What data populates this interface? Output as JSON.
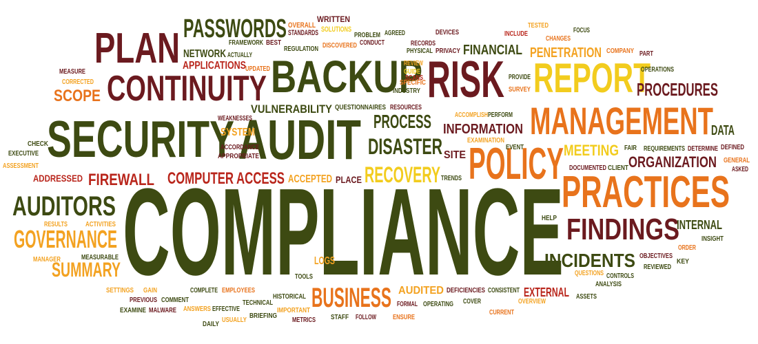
{
  "colors": {
    "olive": "#3d4a12",
    "maroon": "#6b1a1f",
    "red": "#b9261c",
    "orange": "#e8731c",
    "amber": "#f3a221",
    "yellow": "#f2cc1e",
    "green": "#6a7a1c"
  },
  "words": [
    {
      "text": "COMPLIANCE",
      "color": "olive"
    },
    {
      "text": "SECURITY",
      "color": "olive"
    },
    {
      "text": "AUDIT",
      "color": "olive"
    },
    {
      "text": "BACKUP",
      "color": "olive"
    },
    {
      "text": "RISK",
      "color": "maroon"
    },
    {
      "text": "PLAN",
      "color": "maroon"
    },
    {
      "text": "CONTINUITY",
      "color": "maroon"
    },
    {
      "text": "PASSWORDS",
      "color": "olive"
    },
    {
      "text": "REPORT",
      "color": "yellow"
    },
    {
      "text": "MANAGEMENT",
      "color": "orange"
    },
    {
      "text": "PRACTICES",
      "color": "orange"
    },
    {
      "text": "POLICY",
      "color": "orange"
    },
    {
      "text": "PROCEDURES",
      "color": "maroon"
    },
    {
      "text": "FINDINGS",
      "color": "maroon"
    },
    {
      "text": "INCIDENTS",
      "color": "olive"
    },
    {
      "text": "ORGANIZATION",
      "color": "maroon"
    },
    {
      "text": "AUDITORS",
      "color": "olive"
    },
    {
      "text": "GOVERNANCE",
      "color": "amber"
    },
    {
      "text": "SUMMARY",
      "color": "amber"
    },
    {
      "text": "BUSINESS",
      "color": "orange"
    },
    {
      "text": "DISASTER",
      "color": "olive"
    },
    {
      "text": "RECOVERY",
      "color": "yellow"
    },
    {
      "text": "PROCESS",
      "color": "olive"
    },
    {
      "text": "INFORMATION",
      "color": "maroon"
    },
    {
      "text": "FIREWALL",
      "color": "red"
    },
    {
      "text": "COMPUTER ACCESS",
      "color": "red"
    },
    {
      "text": "SCOPE",
      "color": "orange"
    },
    {
      "text": "VULNERABILITY",
      "color": "olive"
    },
    {
      "text": "PENETRATION",
      "color": "amber"
    },
    {
      "text": "FINANCIAL",
      "color": "olive"
    },
    {
      "text": "MEETING",
      "color": "yellow"
    },
    {
      "text": "DATA",
      "color": "olive"
    },
    {
      "text": "INTERNAL",
      "color": "olive"
    },
    {
      "text": "EXTERNAL",
      "color": "red"
    },
    {
      "text": "AUDITED",
      "color": "amber"
    },
    {
      "text": "APPLICATIONS",
      "color": "red"
    },
    {
      "text": "NETWORK",
      "color": "olive"
    },
    {
      "text": "SYSTEM",
      "color": "amber"
    },
    {
      "text": "ACCEPTED",
      "color": "amber"
    },
    {
      "text": "PLACE",
      "color": "maroon"
    },
    {
      "text": "ADDRESSED",
      "color": "red"
    },
    {
      "text": "SITE",
      "color": "maroon"
    },
    {
      "text": "LOGS",
      "color": "amber"
    },
    {
      "text": "WRITTEN",
      "color": "maroon"
    },
    {
      "text": "OVERALL",
      "color": "orange"
    },
    {
      "text": "STANDARDS",
      "color": "maroon"
    },
    {
      "text": "SOLUTIONS",
      "color": "yellow"
    },
    {
      "text": "PROBLEM",
      "color": "olive"
    },
    {
      "text": "AGREED",
      "color": "olive"
    },
    {
      "text": "DEVICES",
      "color": "maroon"
    },
    {
      "text": "INCLUDE",
      "color": "red"
    },
    {
      "text": "TESTED",
      "color": "amber"
    },
    {
      "text": "CHANGES",
      "color": "orange"
    },
    {
      "text": "FOCUS",
      "color": "olive"
    },
    {
      "text": "FRAMEWORK",
      "color": "olive"
    },
    {
      "text": "BEST",
      "color": "maroon"
    },
    {
      "text": "REGULATION",
      "color": "olive"
    },
    {
      "text": "DISCOVERED",
      "color": "orange"
    },
    {
      "text": "CONDUCT",
      "color": "maroon"
    },
    {
      "text": "RECORDS",
      "color": "maroon"
    },
    {
      "text": "PHYSICAL",
      "color": "olive"
    },
    {
      "text": "PRIVACY",
      "color": "maroon"
    },
    {
      "text": "COMPANY",
      "color": "orange"
    },
    {
      "text": "PART",
      "color": "maroon"
    },
    {
      "text": "ACTUALLY",
      "color": "olive"
    },
    {
      "text": "UPDATED",
      "color": "orange"
    },
    {
      "text": "REVIEW",
      "color": "amber"
    },
    {
      "text": "GUIDE",
      "color": "yellow"
    },
    {
      "text": "SCANS",
      "color": "red"
    },
    {
      "text": "SPECIFIC",
      "color": "orange"
    },
    {
      "text": "INDUSTRY",
      "color": "olive"
    },
    {
      "text": "PROVIDE",
      "color": "olive"
    },
    {
      "text": "SURVEY",
      "color": "orange"
    },
    {
      "text": "OPERATIONS",
      "color": "olive"
    },
    {
      "text": "MEASURE",
      "color": "maroon"
    },
    {
      "text": "CORRECTED",
      "color": "amber"
    },
    {
      "text": "WEAKNESSES",
      "color": "maroon"
    },
    {
      "text": "QUESTIONNAIRES",
      "color": "olive"
    },
    {
      "text": "RESOURCES",
      "color": "maroon"
    },
    {
      "text": "ACCOMPLISH",
      "color": "amber"
    },
    {
      "text": "PERFORM",
      "color": "olive"
    },
    {
      "text": "EXAMINATION",
      "color": "amber"
    },
    {
      "text": "EVENT",
      "color": "olive"
    },
    {
      "text": "FAIR",
      "color": "olive"
    },
    {
      "text": "REQUIREMENTS",
      "color": "olive"
    },
    {
      "text": "DETERMINE",
      "color": "maroon"
    },
    {
      "text": "DEFINED",
      "color": "maroon"
    },
    {
      "text": "DOCUMENTED",
      "color": "maroon"
    },
    {
      "text": "CLIENT",
      "color": "olive"
    },
    {
      "text": "GENERAL",
      "color": "orange"
    },
    {
      "text": "ASKED",
      "color": "maroon"
    },
    {
      "text": "CHECK",
      "color": "olive"
    },
    {
      "text": "EXECUTIVE",
      "color": "olive"
    },
    {
      "text": "ASSESSMENT",
      "color": "amber"
    },
    {
      "text": "ACCORDANCE",
      "color": "maroon"
    },
    {
      "text": "APPROPRIATE",
      "color": "maroon"
    },
    {
      "text": "TRENDS",
      "color": "olive"
    },
    {
      "text": "HELP",
      "color": "olive"
    },
    {
      "text": "INSIGHT",
      "color": "olive"
    },
    {
      "text": "ORDER",
      "color": "orange"
    },
    {
      "text": "OBJECTIVES",
      "color": "maroon"
    },
    {
      "text": "KEY",
      "color": "olive"
    },
    {
      "text": "REVIEWED",
      "color": "olive"
    },
    {
      "text": "QUESTIONS",
      "color": "amber"
    },
    {
      "text": "CONTROLS",
      "color": "olive"
    },
    {
      "text": "ANALYSIS",
      "color": "olive"
    },
    {
      "text": "RESULTS",
      "color": "amber"
    },
    {
      "text": "ACTIVITIES",
      "color": "amber"
    },
    {
      "text": "MANAGER",
      "color": "amber"
    },
    {
      "text": "MEASURABLE",
      "color": "olive"
    },
    {
      "text": "SETTINGS",
      "color": "amber"
    },
    {
      "text": "GAIN",
      "color": "amber"
    },
    {
      "text": "COMPLETE",
      "color": "olive"
    },
    {
      "text": "EMPLOYEES",
      "color": "orange"
    },
    {
      "text": "TOOLS",
      "color": "olive"
    },
    {
      "text": "HISTORICAL",
      "color": "olive"
    },
    {
      "text": "DEFICIENCIES",
      "color": "maroon"
    },
    {
      "text": "CONSISTENT",
      "color": "olive"
    },
    {
      "text": "ASSETS",
      "color": "olive"
    },
    {
      "text": "PREVIOUS",
      "color": "maroon"
    },
    {
      "text": "COMMENT",
      "color": "olive"
    },
    {
      "text": "TECHNICAL",
      "color": "olive"
    },
    {
      "text": "FORMAL",
      "color": "maroon"
    },
    {
      "text": "OPERATING",
      "color": "olive"
    },
    {
      "text": "COVER",
      "color": "olive"
    },
    {
      "text": "OVERVIEW",
      "color": "amber"
    },
    {
      "text": "EXAMINE",
      "color": "olive"
    },
    {
      "text": "MALWARE",
      "color": "maroon"
    },
    {
      "text": "ANSWERS",
      "color": "amber"
    },
    {
      "text": "EFFECTIVE",
      "color": "olive"
    },
    {
      "text": "IMPORTANT",
      "color": "amber"
    },
    {
      "text": "ENSURE",
      "color": "orange"
    },
    {
      "text": "CURRENT",
      "color": "orange"
    },
    {
      "text": "DAILY",
      "color": "olive"
    },
    {
      "text": "USUALLY",
      "color": "amber"
    },
    {
      "text": "BRIEFING",
      "color": "olive"
    },
    {
      "text": "METRICS",
      "color": "maroon"
    },
    {
      "text": "STAFF",
      "color": "olive"
    },
    {
      "text": "FOLLOW",
      "color": "maroon"
    }
  ]
}
